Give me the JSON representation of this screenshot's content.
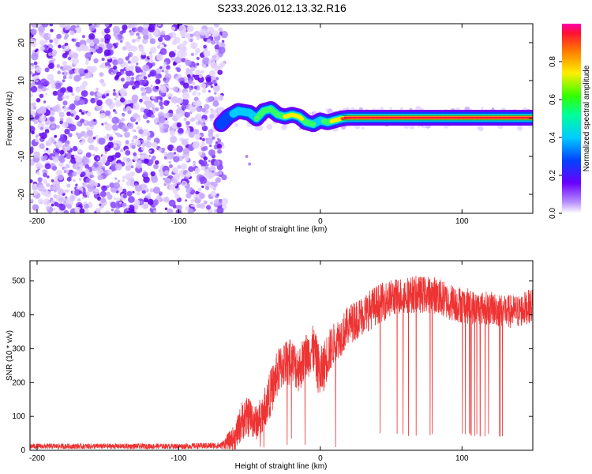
{
  "title": "S233.2026.012.13.32.R16",
  "colors": {
    "snr_line": "#ee3333",
    "ridge_line": "#007a3d",
    "axis": "#000000",
    "background": "#ffffff"
  },
  "chart_data": [
    {
      "type": "heatmap",
      "name": "spectrogram",
      "xlabel": "Height of straight line (km)",
      "ylabel": "Frequency (Hz)",
      "xlim": [
        -205,
        150
      ],
      "ylim": [
        -25,
        25
      ],
      "xticks": [
        -200,
        -100,
        0,
        100
      ],
      "yticks": [
        -20,
        -10,
        0,
        10,
        20
      ],
      "xticklabels": [
        "-200",
        "-100",
        "0",
        "100"
      ],
      "yticklabels": [
        "-20",
        "-10",
        "0",
        "10",
        "20"
      ],
      "noise_region_km": [
        -205,
        -65
      ],
      "ridge": {
        "description": "narrow spectral peak near 0 Hz",
        "x": [
          -70,
          -65,
          -58,
          -50,
          -45,
          -40,
          -35,
          -30,
          -25,
          -20,
          -15,
          -10,
          -5,
          0,
          5,
          10,
          15,
          20,
          40,
          60,
          80,
          100,
          120,
          150
        ],
        "freq": [
          -1.5,
          0.5,
          2.0,
          1.5,
          0.0,
          2.0,
          2.5,
          1.0,
          0.5,
          1.0,
          0.5,
          -1.0,
          -1.5,
          -0.5,
          -1.0,
          -0.5,
          0.0,
          0.2,
          0.2,
          0.2,
          0.2,
          0.2,
          0.2,
          0.2
        ],
        "amplitude": [
          0.3,
          0.4,
          0.5,
          0.5,
          0.55,
          0.6,
          0.6,
          0.6,
          0.65,
          0.7,
          0.7,
          0.6,
          0.55,
          0.5,
          0.6,
          0.7,
          0.8,
          0.95,
          0.95,
          0.95,
          0.95,
          0.95,
          0.95,
          0.95
        ]
      },
      "colorbar": {
        "label": "Normalized spectral amplitude",
        "range": [
          0,
          1
        ],
        "ticks": [
          0.0,
          0.2,
          0.4,
          0.6,
          0.8
        ],
        "ticklabels": [
          "0.0",
          "0.2",
          "0.4",
          "0.6",
          "0.8"
        ]
      }
    },
    {
      "type": "line",
      "name": "snr",
      "xlabel": "Height of straight line (km)",
      "ylabel": "SNR (10 * v/v)",
      "xlim": [
        -205,
        150
      ],
      "ylim": [
        0,
        560
      ],
      "xticks": [
        -200,
        -100,
        0,
        100
      ],
      "yticks": [
        0,
        100,
        200,
        300,
        400,
        500
      ],
      "xticklabels": [
        "-200",
        "-100",
        "0",
        "100"
      ],
      "yticklabels": [
        "0",
        "100",
        "200",
        "300",
        "400",
        "500"
      ],
      "series": [
        {
          "name": "SNR",
          "envelope_x": [
            -205,
            -150,
            -100,
            -70,
            -60,
            -55,
            -50,
            -45,
            -40,
            -35,
            -30,
            -25,
            -20,
            -15,
            -10,
            -5,
            0,
            5,
            10,
            15,
            20,
            30,
            40,
            50,
            60,
            70,
            80,
            90,
            100,
            110,
            120,
            130,
            140,
            150
          ],
          "envelope_mean": [
            12,
            12,
            12,
            14,
            40,
            90,
            100,
            80,
            120,
            170,
            230,
            260,
            260,
            240,
            280,
            300,
            220,
            280,
            320,
            340,
            370,
            400,
            430,
            450,
            460,
            460,
            460,
            440,
            430,
            420,
            420,
            410,
            410,
            430
          ],
          "envelope_spread": [
            8,
            8,
            8,
            10,
            40,
            60,
            60,
            50,
            60,
            70,
            70,
            70,
            70,
            70,
            70,
            70,
            80,
            70,
            60,
            60,
            60,
            60,
            60,
            55,
            55,
            55,
            55,
            55,
            55,
            50,
            50,
            50,
            50,
            50
          ],
          "dropout_regions_km": [
            [
              40,
              85
            ],
            [
              95,
              130
            ]
          ],
          "dropout_floor": 40
        }
      ]
    }
  ]
}
